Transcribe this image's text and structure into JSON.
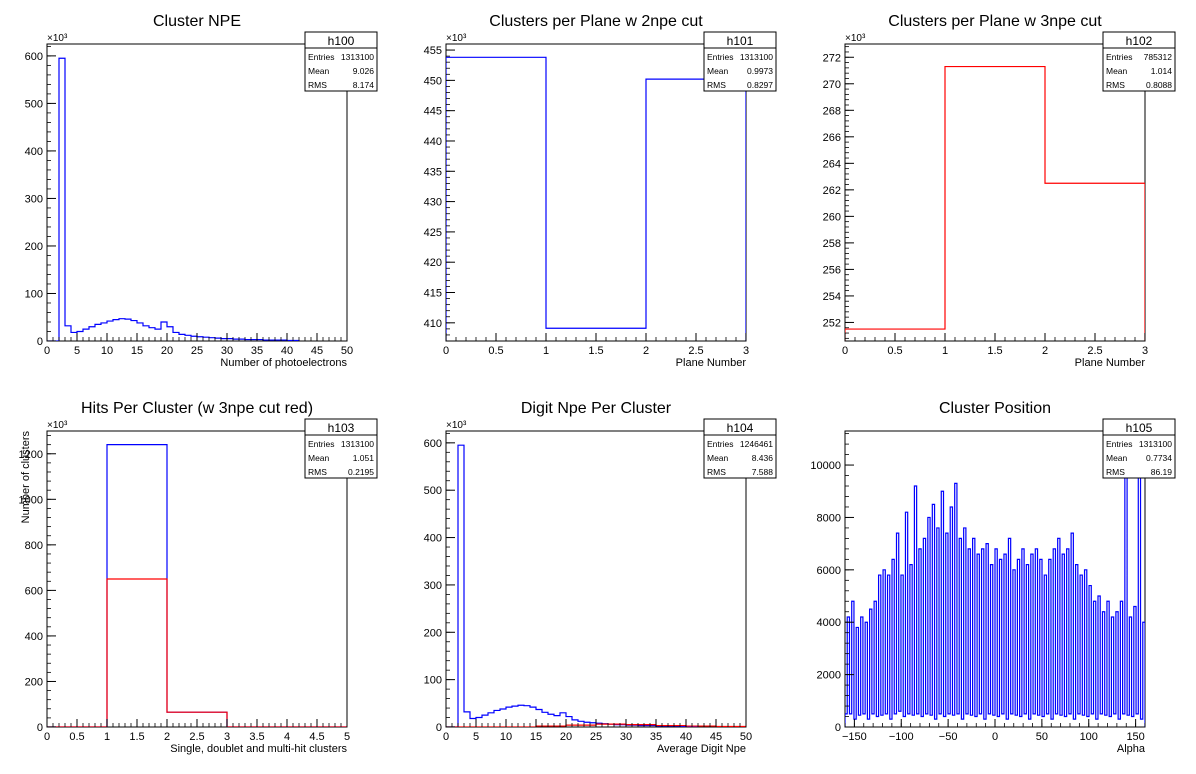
{
  "chart_data": [
    {
      "type": "histogram",
      "title": "Cluster NPE",
      "xlabel": "Number of photoelectrons",
      "ylabel": "",
      "xlim": [
        0,
        50
      ],
      "ylim": [
        0,
        625
      ],
      "exponent": "×10³",
      "xticks": [
        0,
        5,
        10,
        15,
        20,
        25,
        30,
        35,
        40,
        45,
        50
      ],
      "xtick_labels": [
        "0",
        "5",
        "10",
        "15",
        "20",
        "25",
        "30",
        "35",
        "40",
        "45",
        "50"
      ],
      "yticks": [
        0,
        100,
        200,
        300,
        400,
        500,
        600
      ],
      "ytick_labels": [
        "0",
        "100",
        "200",
        "300",
        "400",
        "500",
        "600"
      ],
      "stats": {
        "name": "h100",
        "rows": [
          [
            "Entries",
            "1313100"
          ],
          [
            "Mean",
            "9.026"
          ],
          [
            "RMS",
            "8.174"
          ]
        ]
      },
      "series": [
        {
          "color": "#0000ff",
          "bins": [
            0,
            1,
            2,
            3,
            4,
            5,
            6,
            7,
            8,
            9,
            10,
            11,
            12,
            13,
            14,
            15,
            16,
            17,
            18,
            19,
            20,
            21,
            22,
            23,
            24,
            25,
            26,
            27,
            28,
            29,
            30,
            31,
            32,
            33,
            34,
            35,
            36,
            37,
            38,
            39,
            40,
            41,
            42
          ],
          "values": [
            0,
            0,
            595,
            32,
            18,
            20,
            25,
            30,
            35,
            38,
            42,
            45,
            47,
            46,
            43,
            38,
            32,
            28,
            25,
            40,
            30,
            18,
            14,
            12,
            10,
            9,
            8,
            7,
            6,
            5,
            5,
            4,
            4,
            3,
            3,
            3,
            2,
            2,
            2,
            2,
            1,
            1
          ]
        }
      ]
    },
    {
      "type": "histogram",
      "title": "Clusters per Plane w 2npe cut",
      "xlabel": "Plane Number",
      "ylabel": "",
      "xlim": [
        0,
        3
      ],
      "ylim": [
        407,
        456
      ],
      "exponent": "×10³",
      "xticks": [
        0,
        0.5,
        1,
        1.5,
        2,
        2.5,
        3
      ],
      "xtick_labels": [
        "0",
        "0.5",
        "1",
        "1.5",
        "2",
        "2.5",
        "3"
      ],
      "yticks": [
        410,
        415,
        420,
        425,
        430,
        435,
        440,
        445,
        450,
        455
      ],
      "ytick_labels": [
        "410",
        "415",
        "420",
        "425",
        "430",
        "435",
        "440",
        "445",
        "450",
        "455"
      ],
      "stats": {
        "name": "h101",
        "rows": [
          [
            "Entries",
            "1313100"
          ],
          [
            "Mean",
            "0.9973"
          ],
          [
            "RMS",
            "0.8297"
          ]
        ]
      },
      "series": [
        {
          "color": "#0000ff",
          "bins": [
            0,
            1,
            2,
            3
          ],
          "values": [
            453.8,
            409.1,
            450.2
          ]
        }
      ]
    },
    {
      "type": "histogram",
      "title": "Clusters per Plane w 3npe cut",
      "xlabel": "Plane Number",
      "ylabel": "",
      "xlim": [
        0,
        3
      ],
      "ylim": [
        250.6,
        273
      ],
      "exponent": "×10³",
      "xticks": [
        0,
        0.5,
        1,
        1.5,
        2,
        2.5,
        3
      ],
      "xtick_labels": [
        "0",
        "0.5",
        "1",
        "1.5",
        "2",
        "2.5",
        "3"
      ],
      "yticks": [
        252,
        254,
        256,
        258,
        260,
        262,
        264,
        266,
        268,
        270,
        272
      ],
      "ytick_labels": [
        "252",
        "254",
        "256",
        "258",
        "260",
        "262",
        "264",
        "266",
        "268",
        "270",
        "272"
      ],
      "stats": {
        "name": "h102",
        "rows": [
          [
            "Entries",
            "785312"
          ],
          [
            "Mean",
            "1.014"
          ],
          [
            "RMS",
            "0.8088"
          ]
        ]
      },
      "series": [
        {
          "color": "#ff0000",
          "bins": [
            0,
            1,
            2,
            3
          ],
          "values": [
            251.5,
            271.3,
            262.5
          ]
        }
      ]
    },
    {
      "type": "histogram",
      "title": "Hits Per Cluster (w 3npe cut red)",
      "xlabel": "Single, doublet and multi-hit clusters",
      "ylabel": "Number of clusters",
      "xlim": [
        0,
        5
      ],
      "ylim": [
        0,
        1300
      ],
      "exponent": "×10³",
      "xticks": [
        0,
        0.5,
        1,
        1.5,
        2,
        2.5,
        3,
        3.5,
        4,
        4.5,
        5
      ],
      "xtick_labels": [
        "0",
        "0.5",
        "1",
        "1.5",
        "2",
        "2.5",
        "3",
        "3.5",
        "4",
        "4.5",
        "5"
      ],
      "yticks": [
        0,
        200,
        400,
        600,
        800,
        1000,
        1200
      ],
      "ytick_labels": [
        "0",
        "200",
        "400",
        "600",
        "800",
        "1000",
        "1200"
      ],
      "stats": {
        "name": "h103",
        "rows": [
          [
            "Entries",
            "1313100"
          ],
          [
            "Mean",
            "1.051"
          ],
          [
            "RMS",
            "0.2195"
          ]
        ]
      },
      "series": [
        {
          "color": "#0000ff",
          "bins": [
            0,
            1,
            2,
            3,
            4,
            5
          ],
          "values": [
            0,
            1240,
            65,
            0,
            0
          ]
        },
        {
          "color": "#ff0000",
          "bins": [
            0,
            1,
            2,
            3,
            4,
            5
          ],
          "values": [
            0,
            650,
            65,
            0,
            0
          ]
        }
      ]
    },
    {
      "type": "histogram",
      "title": "Digit Npe Per Cluster",
      "xlabel": "Average Digit Npe",
      "ylabel": "",
      "xlim": [
        0,
        50
      ],
      "ylim": [
        0,
        625
      ],
      "exponent": "×10³",
      "xticks": [
        0,
        5,
        10,
        15,
        20,
        25,
        30,
        35,
        40,
        45,
        50
      ],
      "xtick_labels": [
        "0",
        "5",
        "10",
        "15",
        "20",
        "25",
        "30",
        "35",
        "40",
        "45",
        "50"
      ],
      "yticks": [
        0,
        100,
        200,
        300,
        400,
        500,
        600
      ],
      "ytick_labels": [
        "0",
        "100",
        "200",
        "300",
        "400",
        "500",
        "600"
      ],
      "stats": {
        "name": "h104",
        "rows": [
          [
            "Entries",
            "1246461"
          ],
          [
            "Mean",
            "8.436"
          ],
          [
            "RMS",
            "7.588"
          ]
        ]
      },
      "series": [
        {
          "color": "#0000ff",
          "bins": [
            0,
            1,
            2,
            3,
            4,
            5,
            6,
            7,
            8,
            9,
            10,
            11,
            12,
            13,
            14,
            15,
            16,
            17,
            18,
            19,
            20,
            21,
            22,
            23,
            24,
            25,
            26,
            27,
            28,
            29,
            30,
            31,
            32,
            33,
            34,
            35,
            36,
            37,
            38,
            39,
            40,
            41,
            42
          ],
          "values": [
            0,
            0,
            595,
            32,
            18,
            20,
            25,
            30,
            35,
            38,
            42,
            44,
            46,
            45,
            42,
            37,
            31,
            27,
            24,
            30,
            22,
            15,
            12,
            10,
            9,
            8,
            7,
            6,
            5,
            5,
            4,
            4,
            3,
            3,
            3,
            2,
            2,
            2,
            2,
            1,
            1,
            1
          ]
        },
        {
          "color": "#ff0000",
          "bins": [
            0,
            5,
            10,
            15,
            20,
            25,
            30,
            35,
            40,
            45,
            50
          ],
          "values": [
            0,
            0,
            0,
            2,
            4,
            6,
            5,
            3,
            2,
            1
          ]
        }
      ]
    },
    {
      "type": "histogram",
      "title": "Cluster Position",
      "xlabel": "Alpha",
      "ylabel": "",
      "xlim": [
        -160,
        160
      ],
      "ylim": [
        0,
        11300
      ],
      "exponent": "",
      "xticks": [
        -150,
        -100,
        -50,
        0,
        50,
        100,
        150
      ],
      "xtick_labels": [
        "−150",
        "−100",
        "−50",
        "0",
        "50",
        "100",
        "150"
      ],
      "yticks": [
        0,
        2000,
        4000,
        6000,
        8000,
        10000
      ],
      "ytick_labels": [
        "0",
        "2000",
        "4000",
        "6000",
        "8000",
        "10000"
      ],
      "stats": {
        "name": "h105",
        "rows": [
          [
            "Entries",
            "1313100"
          ],
          [
            "Mean",
            "0.7734"
          ],
          [
            "RMS",
            "86.19"
          ]
        ]
      },
      "series": [
        {
          "color": "#0000ff",
          "xmin": -160,
          "xmax": 160,
          "values": [
            500,
            4200,
            500,
            4800,
            300,
            3800,
            450,
            4200,
            500,
            4000,
            300,
            4500,
            500,
            4800,
            400,
            5800,
            450,
            6000,
            500,
            5800,
            300,
            6400,
            500,
            7400,
            600,
            5800,
            400,
            8200,
            500,
            6200,
            450,
            9200,
            500,
            6800,
            400,
            7200,
            500,
            8000,
            450,
            8500,
            300,
            7600,
            500,
            9000,
            400,
            7400,
            500,
            8400,
            450,
            9300,
            500,
            7200,
            300,
            7600,
            500,
            6800,
            450,
            7200,
            400,
            6600,
            500,
            6800,
            300,
            7000,
            500,
            6200,
            450,
            6800,
            400,
            6400,
            500,
            6600,
            300,
            7200,
            500,
            6000,
            450,
            6400,
            400,
            6800,
            500,
            6200,
            300,
            6600,
            500,
            6800,
            450,
            6400,
            400,
            5800,
            500,
            6400,
            300,
            6800,
            500,
            7200,
            450,
            6600,
            400,
            6800,
            500,
            7400,
            300,
            6200,
            500,
            5800,
            450,
            6000,
            400,
            5400,
            500,
            4800,
            300,
            5000,
            500,
            4400,
            450,
            4800,
            400,
            4200,
            500,
            4400,
            300,
            4800,
            500,
            11000,
            450,
            4200,
            400,
            4600,
            500,
            10200,
            300,
            4000
          ]
        }
      ]
    }
  ]
}
